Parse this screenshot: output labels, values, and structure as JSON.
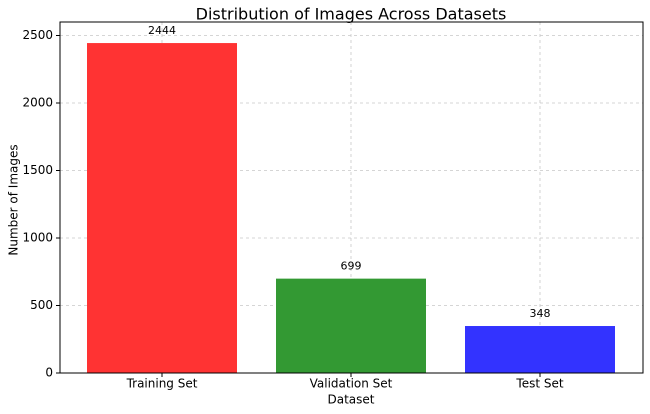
{
  "chart_data": {
    "type": "bar",
    "title": "Distribution of Images Across Datasets",
    "x_label": "Dataset",
    "y_label": "Number of Images",
    "categories": [
      "Training Set",
      "Validation Set",
      "Test Set"
    ],
    "values": [
      2444,
      699,
      348
    ],
    "colors": [
      "#ff3333",
      "#339933",
      "#3333ff"
    ],
    "ylim": [
      0,
      2600
    ],
    "yticks": [
      0,
      500,
      1000,
      1500,
      2000,
      2500
    ],
    "grid": true
  }
}
